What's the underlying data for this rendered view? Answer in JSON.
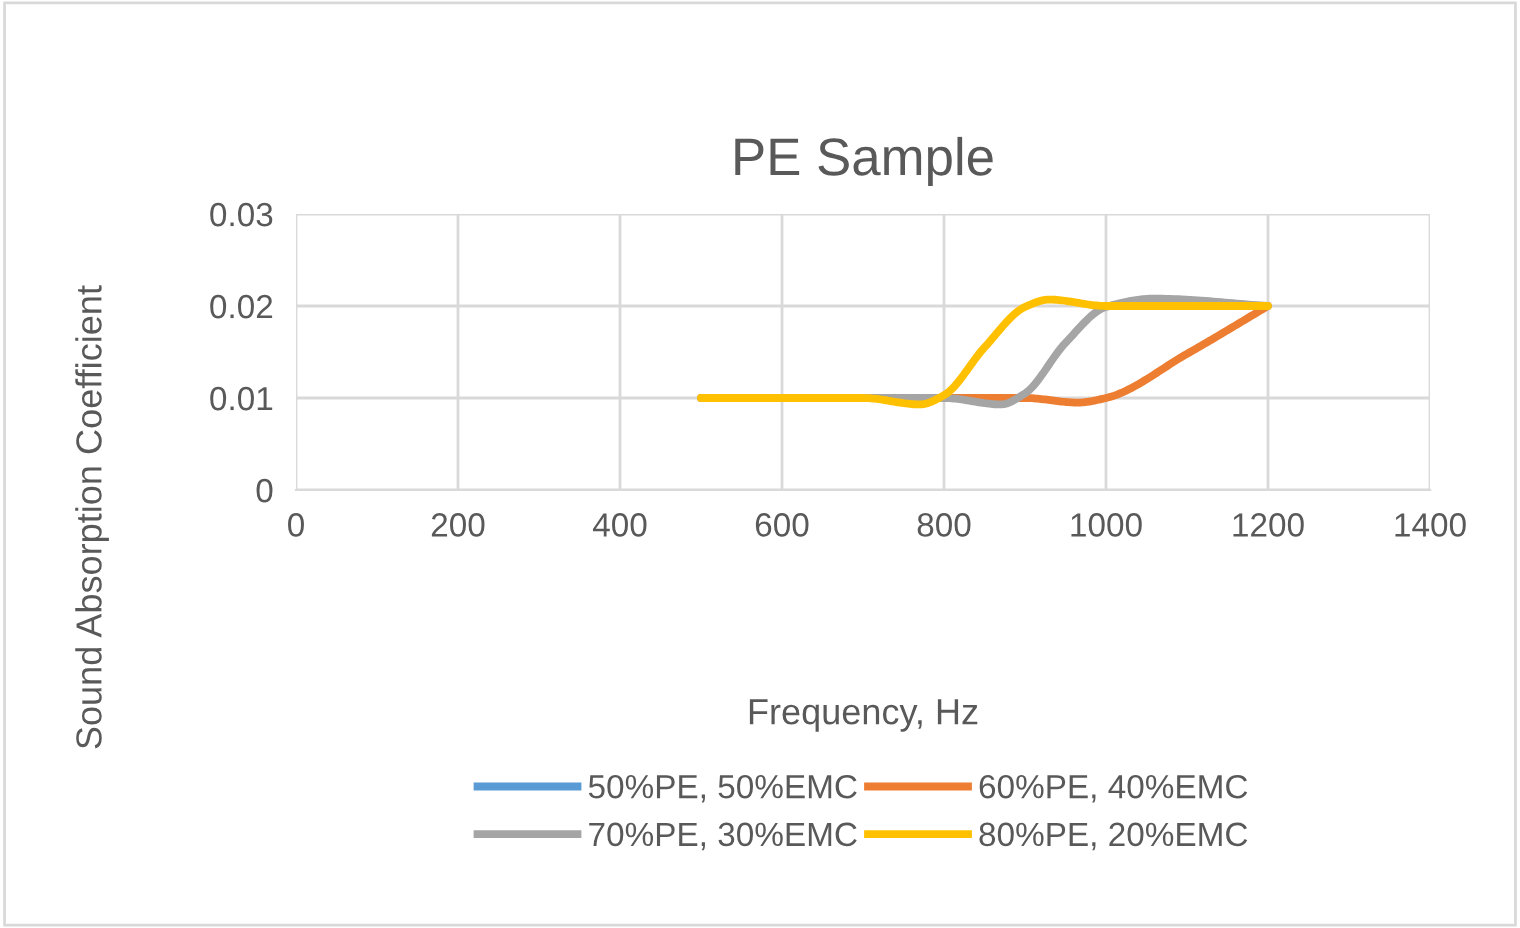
{
  "chart_data": {
    "type": "line",
    "title": "PE Sample",
    "xlabel": "Frequency, Hz",
    "ylabel": "Sound Absorption Coefficient",
    "series": [
      {
        "name": "50%PE, 50%EMC",
        "color": "#5b9bd5"
      },
      {
        "name": "60%PE, 40%EMC",
        "color": "#ed7d31",
        "x": [
          500,
          700,
          900,
          965,
          1000,
          1100,
          1200
        ],
        "values": [
          0.01,
          0.01,
          0.01,
          0.0095,
          0.01,
          0.0148,
          0.02
        ]
      },
      {
        "name": "70%PE, 30%EMC",
        "color": "#a5a5a5",
        "x": [
          500,
          800,
          870,
          900,
          950,
          1000,
          1060,
          1200
        ],
        "values": [
          0.01,
          0.01,
          0.0093,
          0.0105,
          0.016,
          0.0199,
          0.0208,
          0.02
        ]
      },
      {
        "name": "80%PE, 20%EMC",
        "color": "#ffc000",
        "x": [
          500,
          700,
          770,
          800,
          850,
          900,
          930,
          1000,
          1200
        ],
        "values": [
          0.01,
          0.01,
          0.0093,
          0.0103,
          0.0155,
          0.0199,
          0.0207,
          0.02,
          0.02
        ]
      }
    ],
    "xlim": [
      0,
      1400
    ],
    "xticks": [
      0,
      200,
      400,
      600,
      800,
      1000,
      1200,
      1400
    ],
    "ylim": [
      0,
      0.03
    ],
    "yticks": [
      {
        "value": 0,
        "label": "0"
      },
      {
        "value": 0.01,
        "label": "0.01"
      },
      {
        "value": 0.02,
        "label": "0.02"
      },
      {
        "value": 0.03,
        "label": "0.03"
      }
    ],
    "grid": true,
    "legend": "bottom",
    "line_style": "solid",
    "marker": "none"
  }
}
